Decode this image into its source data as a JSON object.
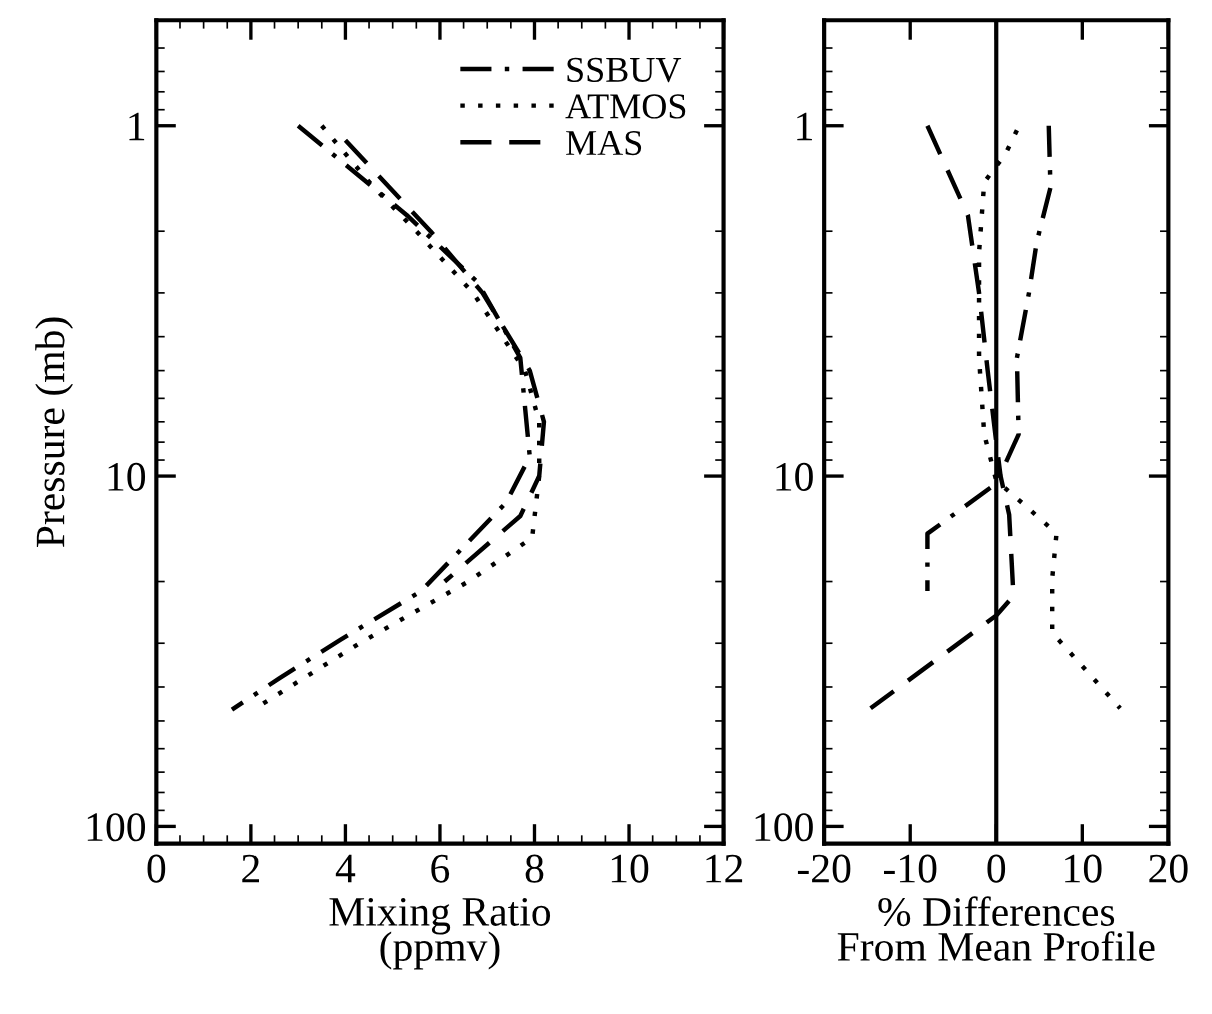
{
  "chart_data": [
    {
      "type": "line",
      "xlabel": "Mixing Ratio\n(ppmv)",
      "ylabel": "Pressure (mb)",
      "xlim": [
        0,
        12
      ],
      "xticks": [
        0,
        2,
        4,
        6,
        8,
        10,
        12
      ],
      "ylim": [
        112,
        0.5
      ],
      "yticks": [
        1,
        10,
        100
      ],
      "log": "y",
      "grid": false,
      "legend": "top right",
      "series": [
        {
          "name": "SSBUV",
          "color": "#000000",
          "line_style": "dashdot",
          "x": [
            3.0,
            5.3,
            6.8,
            7.7,
            7.9,
            7.4,
            5.6,
            3.9,
            2.6,
            1.6
          ],
          "values": [
            1,
            1.8,
            2.8,
            4.6,
            8.8,
            11.9,
            21.3,
            29.3,
            37.8,
            46.4
          ]
        },
        {
          "name": "ATMOS",
          "color": "#000000",
          "line_style": "dotted",
          "x": [
            3.5,
            4.6,
            5.5,
            6.7,
            7.8,
            8.1,
            8.1,
            7.95,
            6.6,
            4.3,
            2.1
          ],
          "values": [
            1,
            1.5,
            2,
            3,
            5,
            7,
            10,
            15,
            20,
            30,
            46
          ]
        },
        {
          "name": "MAS",
          "color": "#000000",
          "line_style": "dashed",
          "x": [
            4.0,
            5.8,
            6.9,
            7.9,
            8.2,
            8.1,
            7.7,
            6.1
          ],
          "values": [
            1.1,
            2,
            3,
            5,
            7,
            10,
            13,
            20
          ]
        }
      ]
    },
    {
      "type": "line",
      "xlabel": "% Differences\nFrom Mean Profile",
      "xlim": [
        -20,
        20
      ],
      "xticks": [
        -20,
        -10,
        0,
        10,
        20
      ],
      "ylim": [
        112,
        0.5
      ],
      "yticks": [
        1,
        10,
        100
      ],
      "log": "y",
      "grid": false,
      "ref_lines": [
        {
          "axis": "x",
          "value": 0,
          "color": "#000000",
          "line_style": "solid"
        }
      ],
      "series": [
        {
          "color": "#000000",
          "line_style": "dashdot",
          "x": [
            6.1,
            6.3,
            4.7,
            3.8,
            2.4,
            2.6,
            0,
            -8,
            -8
          ],
          "values": [
            1,
            1.5,
            2.15,
            3,
            4.6,
            7.6,
            10.5,
            14.6,
            21.3
          ]
        },
        {
          "color": "#000000",
          "line_style": "dotted",
          "x": [
            2.4,
            1.1,
            -1.4,
            -2,
            -2,
            -1.4,
            0,
            3.8,
            7,
            6.5,
            6.5,
            14.4
          ],
          "values": [
            1.03,
            1.2,
            1.45,
            2.3,
            4.6,
            7.6,
            10.3,
            12.4,
            14.6,
            19.6,
            28,
            46
          ]
        },
        {
          "color": "#000000",
          "line_style": "dashed",
          "x": [
            -8,
            -3.3,
            -2,
            -1,
            0,
            0.5,
            1.5,
            2,
            0,
            -14.6
          ],
          "values": [
            1,
            1.8,
            3,
            5,
            8,
            10,
            12.9,
            22,
            25,
            46
          ]
        }
      ]
    }
  ]
}
